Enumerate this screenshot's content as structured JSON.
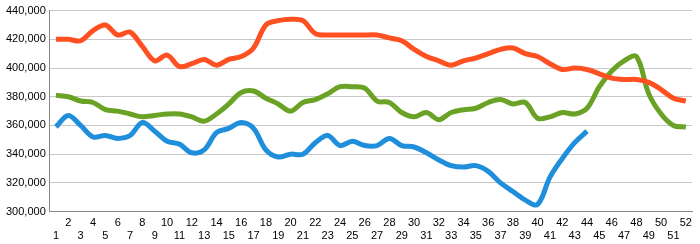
{
  "chart_data": {
    "type": "line",
    "categories": [
      1,
      2,
      3,
      4,
      5,
      6,
      7,
      8,
      9,
      10,
      11,
      12,
      13,
      14,
      15,
      16,
      17,
      18,
      19,
      20,
      21,
      22,
      23,
      24,
      25,
      26,
      27,
      28,
      29,
      30,
      31,
      32,
      33,
      34,
      35,
      36,
      37,
      38,
      39,
      40,
      41,
      42,
      43,
      44,
      45,
      46,
      47,
      48,
      49,
      50,
      51,
      52
    ],
    "series": [
      {
        "color": "#ff5022",
        "values": [
          420000,
          420000,
          419000,
          426000,
          430000,
          423000,
          425000,
          415000,
          405000,
          409000,
          401000,
          403000,
          406000,
          402000,
          406000,
          408000,
          414000,
          430000,
          433000,
          434000,
          433000,
          424000,
          423000,
          423000,
          423000,
          423000,
          423000,
          421000,
          419000,
          413000,
          408000,
          405000,
          402000,
          405000,
          407000,
          410000,
          413000,
          414000,
          410000,
          408000,
          403000,
          399000,
          400000,
          399000,
          396000,
          393000,
          392000,
          392000,
          390000,
          385000,
          379000,
          377000
        ]
      },
      {
        "color": "#6aa225",
        "values": [
          381000,
          380000,
          377000,
          376000,
          371000,
          370000,
          368000,
          366000,
          367000,
          368000,
          368000,
          366000,
          363000,
          368000,
          375000,
          383000,
          384000,
          379000,
          375000,
          370000,
          376000,
          378000,
          382000,
          387000,
          387000,
          386000,
          377000,
          376000,
          369000,
          366000,
          369000,
          364000,
          369000,
          371000,
          372000,
          376000,
          378000,
          375000,
          376000,
          365000,
          366000,
          369000,
          368000,
          372000,
          387000,
          398000,
          405000,
          408000,
          382000,
          368000,
          360000,
          359000
        ]
      },
      {
        "color": "#1f8fdb",
        "values": [
          359000,
          367000,
          360000,
          352000,
          353000,
          351000,
          353000,
          362000,
          356000,
          349000,
          347000,
          341000,
          343000,
          355000,
          358000,
          362000,
          358000,
          343000,
          338000,
          340000,
          340000,
          348000,
          353000,
          346000,
          349000,
          346000,
          346000,
          351000,
          346000,
          345000,
          341000,
          336000,
          332000,
          331000,
          332000,
          328000,
          320000,
          314000,
          308000,
          305000,
          324000,
          337000,
          348000,
          356000,
          null,
          null,
          null,
          null,
          null,
          null,
          null,
          null
        ]
      }
    ],
    "ylim": [
      300000,
      440000
    ],
    "yticks": [
      {
        "value": 300000,
        "label": "300,000"
      },
      {
        "value": 320000,
        "label": "320,000"
      },
      {
        "value": 340000,
        "label": "340,000"
      },
      {
        "value": 360000,
        "label": "360,000"
      },
      {
        "value": 380000,
        "label": "380,000"
      },
      {
        "value": 400000,
        "label": "400,000"
      },
      {
        "value": 420000,
        "label": "420,000"
      },
      {
        "value": 440000,
        "label": "440,000"
      }
    ],
    "grid": true
  }
}
